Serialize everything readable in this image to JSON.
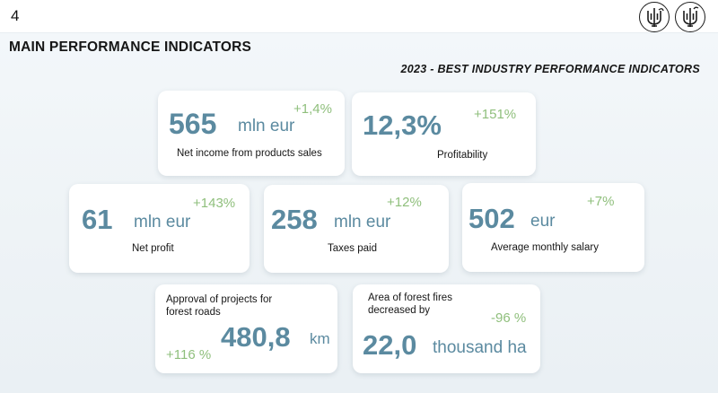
{
  "page_number": "4",
  "heading": "MAIN PERFORMANCE INDICATORS",
  "subheading": "2023 - BEST INDUSTRY PERFORMANCE INDICATORS",
  "cards": [
    {
      "value": "565",
      "unit": "mln eur",
      "change": "+1,4%",
      "label": "Net income from products sales"
    },
    {
      "value": "12,3%",
      "unit": "",
      "change": "+151%",
      "label": "Profitability"
    },
    {
      "value": "61",
      "unit": "mln eur",
      "change": "+143%",
      "label": "Net profit"
    },
    {
      "value": "258",
      "unit": "mln eur",
      "change": "+12%",
      "label": "Taxes paid"
    },
    {
      "value": "502",
      "unit": "eur",
      "change": "+7%",
      "label": "Average monthly salary"
    },
    {
      "value": "480,8",
      "unit": "km",
      "change": "+116 %",
      "label_line1": "Approval of projects for",
      "label_line2": "forest roads"
    },
    {
      "value": "22,0",
      "unit": "thousand ha",
      "change": "-96 %",
      "label_line1": "Area of forest fires",
      "label_line2": "decreased by"
    }
  ],
  "colors": {
    "value": "#5b8aa0",
    "change": "#8fbf7c",
    "text": "#161616",
    "background": "#eef3f6"
  },
  "icons": [
    "trident-emblem-icon",
    "trident-emblem-icon"
  ]
}
